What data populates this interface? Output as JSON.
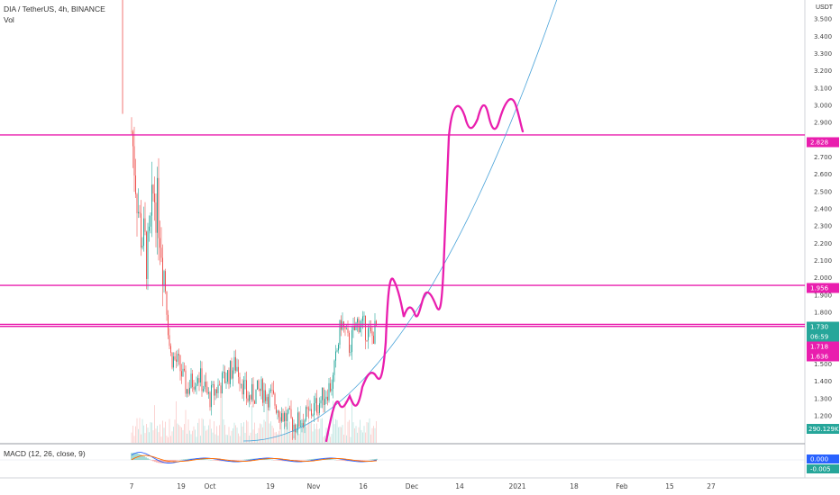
{
  "header": {
    "symbol_line": "DIA / TetherUS, 4h, BINANCE",
    "vol_label": "Vol",
    "macd_label": "MACD (12, 26, close, 9)"
  },
  "colors": {
    "up": "#26a69a",
    "down": "#ef5350",
    "hline": "#e91eae",
    "drawing": "#e91eae",
    "curve": "#4aa3d9",
    "macd_line": "#2962ff",
    "signal_line": "#ff6d00"
  },
  "chart_data": {
    "type": "candlestick",
    "exchange": "BINANCE",
    "symbol": "DIA / TetherUS",
    "interval": "4h",
    "y_axis_unit": "USDT",
    "ylim": [
      1.1,
      3.8
    ],
    "y_ticks": [
      "3.500",
      "3.400",
      "3.300",
      "3.200",
      "3.100",
      "3.000",
      "2.900",
      "2.800",
      "2.700",
      "2.600",
      "2.500",
      "2.400",
      "2.300",
      "2.200",
      "2.100",
      "2.000",
      "1.900",
      "1.800",
      "1.700",
      "1.600",
      "1.500",
      "1.400",
      "1.300",
      "1.200"
    ],
    "x_ticks": [
      "7",
      "19",
      "Oct",
      "19",
      "Nov",
      "16",
      "Dec",
      "14",
      "2021",
      "18",
      "Feb",
      "15",
      "27"
    ],
    "price_series_approx": [
      {
        "x": "Sep 7",
        "v": 2.85
      },
      {
        "x": "Sep 10",
        "v": 2.3
      },
      {
        "x": "Sep 13",
        "v": 2.1
      },
      {
        "x": "Sep 15",
        "v": 2.5
      },
      {
        "x": "Sep 17",
        "v": 2.35
      },
      {
        "x": "Sep 19",
        "v": 2.0
      },
      {
        "x": "Sep 21",
        "v": 1.55
      },
      {
        "x": "Sep 24",
        "v": 1.5
      },
      {
        "x": "Sep 27",
        "v": 1.35
      },
      {
        "x": "Oct 1",
        "v": 1.45
      },
      {
        "x": "Oct 5",
        "v": 1.3
      },
      {
        "x": "Oct 10",
        "v": 1.4
      },
      {
        "x": "Oct 15",
        "v": 1.5
      },
      {
        "x": "Oct 19",
        "v": 1.3
      },
      {
        "x": "Oct 24",
        "v": 1.35
      },
      {
        "x": "Oct 28",
        "v": 1.3
      },
      {
        "x": "Nov 1",
        "v": 1.2
      },
      {
        "x": "Nov 5",
        "v": 1.15
      },
      {
        "x": "Nov 10",
        "v": 1.2
      },
      {
        "x": "Nov 15",
        "v": 1.3
      },
      {
        "x": "Nov 19",
        "v": 1.4
      },
      {
        "x": "Nov 22",
        "v": 1.75
      },
      {
        "x": "Nov 25",
        "v": 1.6
      },
      {
        "x": "Nov 28",
        "v": 1.75
      },
      {
        "x": "Dec 1",
        "v": 1.7
      },
      {
        "x": "Dec 3",
        "v": 1.65
      },
      {
        "x": "Dec 5",
        "v": 1.72
      }
    ],
    "horizontal_levels": [
      2.828,
      1.956,
      1.73,
      1.718
    ],
    "price_badges": [
      {
        "label": "2.828",
        "kind": "level"
      },
      {
        "label": "1.956",
        "kind": "level"
      },
      {
        "label": "1.730",
        "kind": "price"
      },
      {
        "label": "06:59",
        "kind": "timer"
      },
      {
        "label": "1.718",
        "kind": "level"
      },
      {
        "label": "1.636",
        "kind": "level"
      }
    ],
    "volume_badge": "290.129K",
    "macd": {
      "params": "12, 26, close, 9",
      "badges": [
        "0.000",
        "-0.005"
      ]
    }
  }
}
